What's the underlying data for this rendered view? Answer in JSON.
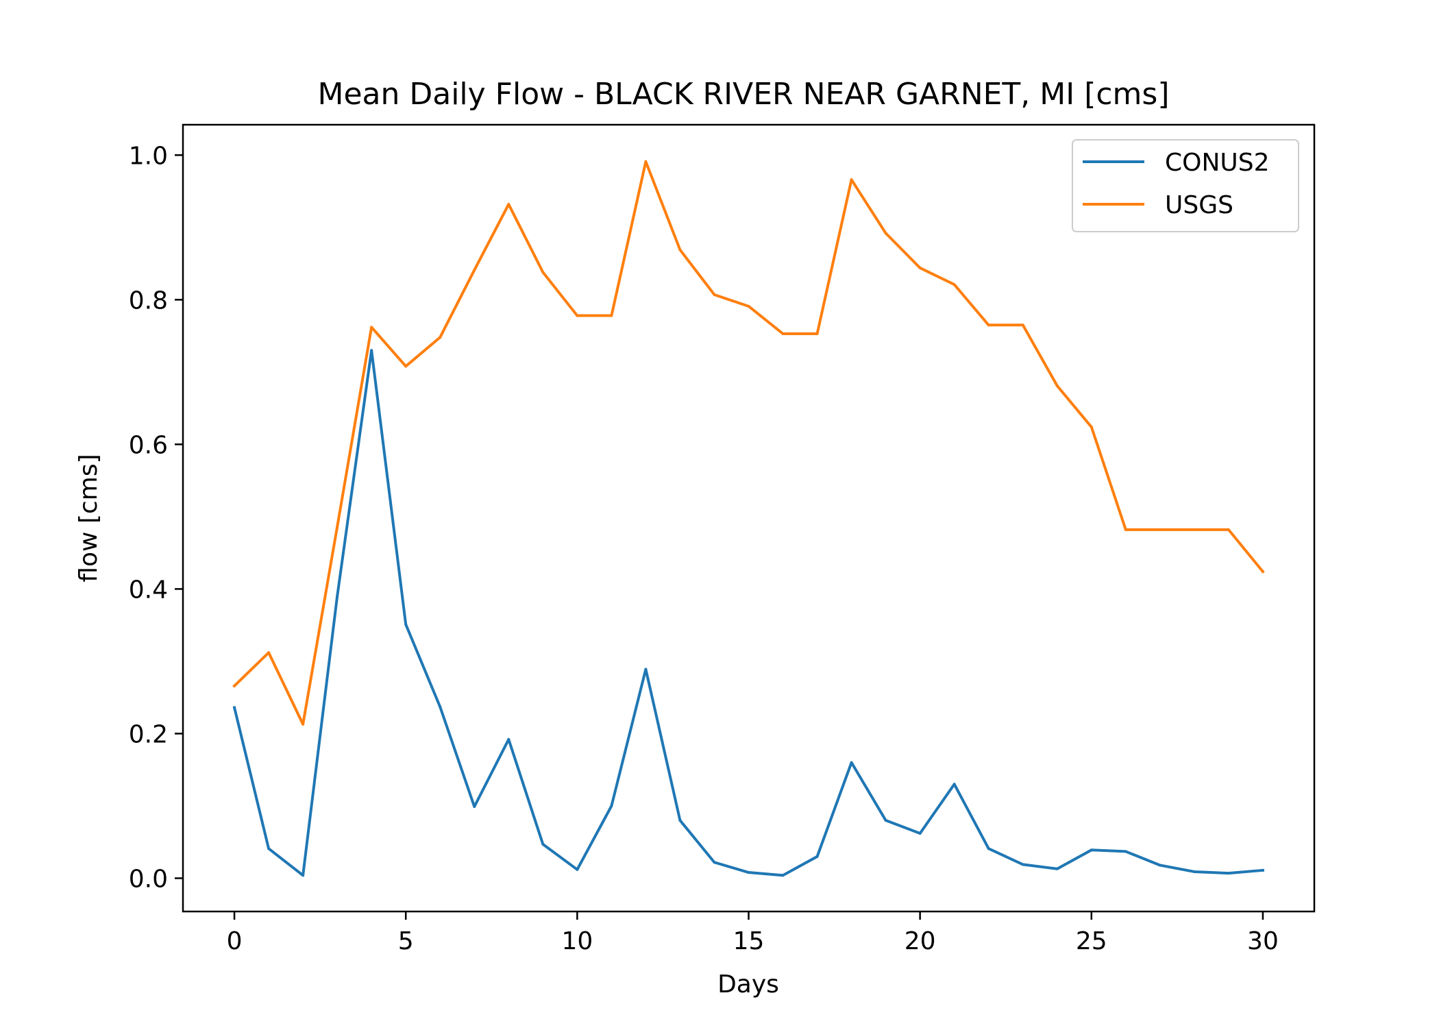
{
  "chart_data": {
    "type": "line",
    "title": "Mean Daily Flow - BLACK RIVER NEAR GARNET, MI [cms]",
    "xlabel": "Days",
    "ylabel": "flow [cms]",
    "xlim": [
      -1.5,
      31.5
    ],
    "ylim": [
      -0.046,
      1.042
    ],
    "xticks": [
      0,
      5,
      10,
      15,
      20,
      25,
      30
    ],
    "xtick_labels": [
      "0",
      "5",
      "10",
      "15",
      "20",
      "25",
      "30"
    ],
    "yticks": [
      0.0,
      0.2,
      0.4,
      0.6,
      0.8,
      1.0
    ],
    "ytick_labels": [
      "0.0",
      "0.2",
      "0.4",
      "0.6",
      "0.8",
      "1.0"
    ],
    "grid": false,
    "legend_position": "top-right",
    "x": [
      0,
      1,
      2,
      3,
      4,
      5,
      6,
      7,
      8,
      9,
      10,
      11,
      12,
      13,
      14,
      15,
      16,
      17,
      18,
      19,
      20,
      21,
      22,
      23,
      24,
      25,
      26,
      27,
      28,
      29,
      30
    ],
    "series": [
      {
        "name": "CONUS2",
        "color": "#1f77b4",
        "values": [
          0.236,
          0.041,
          0.004,
          0.39,
          0.73,
          0.351,
          0.237,
          0.099,
          0.192,
          0.047,
          0.012,
          0.1,
          0.289,
          0.08,
          0.022,
          0.008,
          0.004,
          0.03,
          0.16,
          0.08,
          0.062,
          0.13,
          0.041,
          0.019,
          0.013,
          0.039,
          0.037,
          0.018,
          0.009,
          0.007,
          0.011
        ]
      },
      {
        "name": "USGS",
        "color": "#ff7f0e",
        "values": [
          0.266,
          0.312,
          0.213,
          0.486,
          0.762,
          0.708,
          0.748,
          0.841,
          0.932,
          0.838,
          0.778,
          0.778,
          0.991,
          0.869,
          0.807,
          0.791,
          0.753,
          0.753,
          0.966,
          0.892,
          0.844,
          0.821,
          0.765,
          0.765,
          0.681,
          0.624,
          0.482,
          0.482,
          0.482,
          0.482,
          0.424
        ]
      }
    ]
  }
}
